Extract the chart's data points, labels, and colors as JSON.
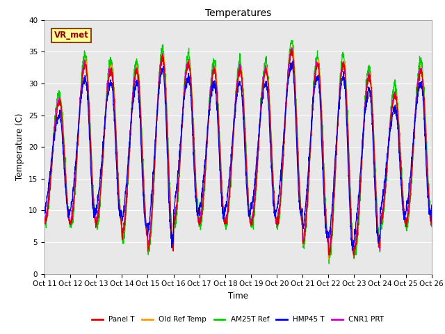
{
  "title": "Temperatures",
  "xlabel": "Time",
  "ylabel": "Temperature (C)",
  "ylim": [
    0,
    40
  ],
  "yticks": [
    0,
    5,
    10,
    15,
    20,
    25,
    30,
    35,
    40
  ],
  "xtick_labels": [
    "Oct 11",
    "Oct 12",
    "Oct 13",
    "Oct 14",
    "Oct 15",
    "Oct 16",
    "Oct 17",
    "Oct 18",
    "Oct 19",
    "Oct 20",
    "Oct 21",
    "Oct 22",
    "Oct 23",
    "Oct 24",
    "Oct 25",
    "Oct 26"
  ],
  "annotation_text": "VR_met",
  "series_colors": {
    "Panel T": "#dd0000",
    "Old Ref Temp": "#ff9900",
    "AM25T Ref": "#00cc00",
    "HMP45 T": "#0000ee",
    "CNR1 PRT": "#cc00cc"
  },
  "background_color": "#e8e8e8",
  "figure_background": "#ffffff",
  "n_days": 15,
  "samples_per_day": 144,
  "day_maxes": [
    27,
    33,
    32,
    32,
    34,
    33,
    32,
    32,
    32,
    35,
    33,
    33,
    31,
    28,
    32
  ],
  "day_mins": [
    8,
    8,
    8,
    6,
    4,
    8,
    8,
    8,
    8,
    8,
    5,
    3,
    4,
    8,
    8
  ]
}
